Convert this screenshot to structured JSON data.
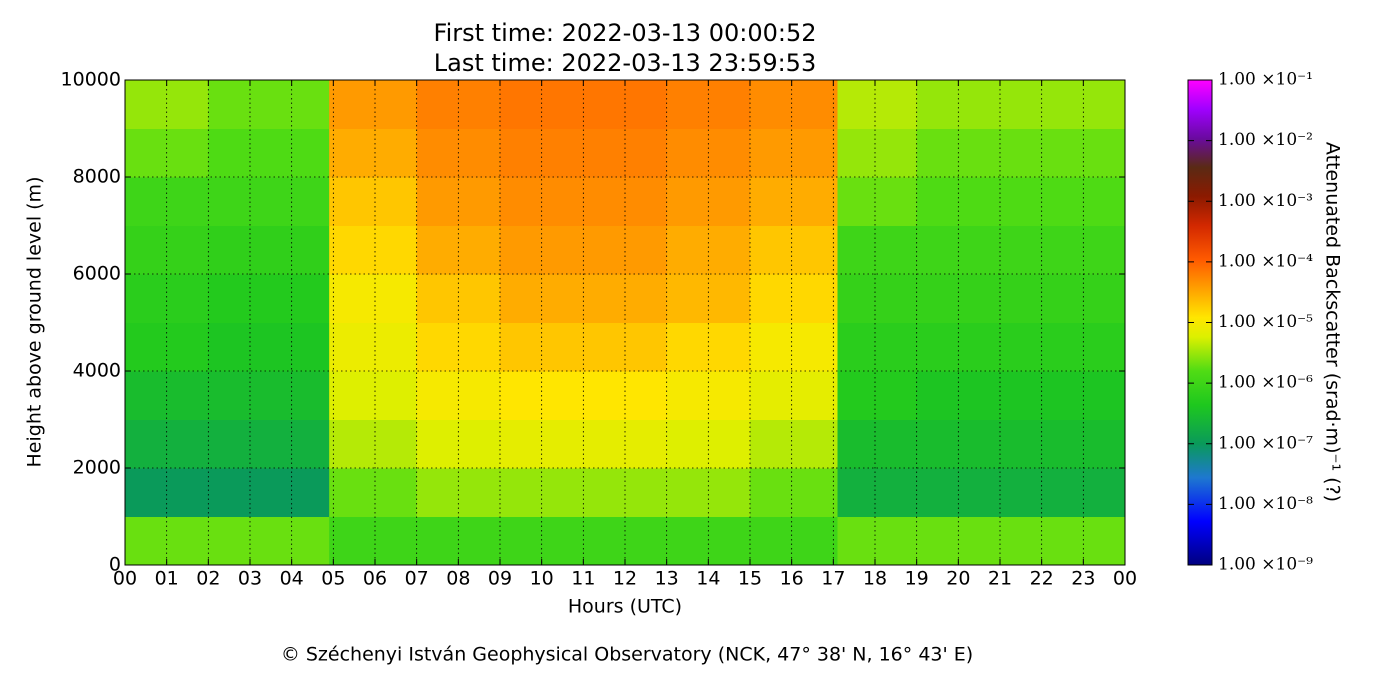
{
  "chart_data": {
    "type": "heatmap",
    "title": [
      "First time: 2022-03-13 00:00:52",
      "Last time: 2022-03-13 23:59:53"
    ],
    "x_label": "Hours (UTC)",
    "y_label": "Height above ground level (m)",
    "colorbar_label": "Attenuated Backscatter (srad·m)⁻¹ (?)",
    "footer": "© Széchenyi István Geophysical Observatory (NCK, 47° 38' N, 16° 43' E)",
    "xlim": [
      0,
      24
    ],
    "xticks": [
      {
        "value": 0,
        "label": "00"
      },
      {
        "value": 1,
        "label": "01"
      },
      {
        "value": 2,
        "label": "02"
      },
      {
        "value": 3,
        "label": "03"
      },
      {
        "value": 4,
        "label": "04"
      },
      {
        "value": 5,
        "label": "05"
      },
      {
        "value": 6,
        "label": "06"
      },
      {
        "value": 7,
        "label": "07"
      },
      {
        "value": 8,
        "label": "08"
      },
      {
        "value": 9,
        "label": "09"
      },
      {
        "value": 10,
        "label": "10"
      },
      {
        "value": 11,
        "label": "11"
      },
      {
        "value": 12,
        "label": "12"
      },
      {
        "value": 13,
        "label": "13"
      },
      {
        "value": 14,
        "label": "14"
      },
      {
        "value": 15,
        "label": "15"
      },
      {
        "value": 16,
        "label": "16"
      },
      {
        "value": 17,
        "label": "17"
      },
      {
        "value": 18,
        "label": "18"
      },
      {
        "value": 19,
        "label": "19"
      },
      {
        "value": 20,
        "label": "20"
      },
      {
        "value": 21,
        "label": "21"
      },
      {
        "value": 22,
        "label": "22"
      },
      {
        "value": 23,
        "label": "23"
      },
      {
        "value": 24,
        "label": "00"
      }
    ],
    "ylim": [
      0,
      10000
    ],
    "yticks": [
      0,
      2000,
      4000,
      6000,
      8000,
      10000
    ],
    "grid": true,
    "x_bins": [
      0,
      2,
      4.9,
      7,
      9,
      11,
      13,
      15,
      17.1,
      19,
      21,
      24
    ],
    "y_bins": [
      0,
      1000,
      2000,
      3000,
      4000,
      5000,
      6000,
      7000,
      8000,
      9000,
      10000
    ],
    "z": [
      [
        2e-06,
        2e-06,
        1e-06,
        1e-06,
        1e-06,
        1e-06,
        1e-06,
        1e-06,
        2e-06,
        2e-06,
        2e-06
      ],
      [
        1e-07,
        1e-07,
        2e-06,
        3e-06,
        3e-06,
        3e-06,
        3e-06,
        2e-06,
        2e-07,
        2e-07,
        2e-07
      ],
      [
        2e-07,
        2e-07,
        4e-06,
        6e-06,
        7e-06,
        7e-06,
        6e-06,
        4e-06,
        3e-07,
        3e-07,
        3e-07
      ],
      [
        3e-07,
        3e-07,
        6e-06,
        1e-05,
        1.2e-05,
        1.2e-05,
        1e-05,
        7e-06,
        5e-07,
        4e-07,
        4e-07
      ],
      [
        5e-07,
        4e-07,
        8e-06,
        1.5e-05,
        2e-05,
        2e-05,
        1.5e-05,
        1e-05,
        6e-07,
        6e-07,
        6e-07
      ],
      [
        6e-07,
        5e-07,
        1e-05,
        2e-05,
        3e-05,
        3e-05,
        2.5e-05,
        1.5e-05,
        8e-07,
        8e-07,
        8e-07
      ],
      [
        8e-07,
        7e-07,
        1.5e-05,
        3e-05,
        4e-05,
        4e-05,
        3e-05,
        2e-05,
        1e-06,
        1e-06,
        1e-06
      ],
      [
        1e-06,
        1e-06,
        2e-05,
        4e-05,
        5e-05,
        5e-05,
        4e-05,
        3e-05,
        2e-06,
        1.5e-06,
        1.5e-06
      ],
      [
        2e-06,
        1.5e-06,
        3e-05,
        5e-05,
        6e-05,
        6e-05,
        5e-05,
        4e-05,
        3e-06,
        2e-06,
        2e-06
      ],
      [
        3e-06,
        2e-06,
        4e-05,
        6e-05,
        7e-05,
        7e-05,
        6e-05,
        5e-05,
        4e-06,
        3e-06,
        3e-06
      ]
    ],
    "zscale": "log",
    "zlim": [
      1e-09,
      0.1
    ],
    "zticks": [
      {
        "value": 1e-09,
        "label": "1.00 ×10⁻⁹"
      },
      {
        "value": 1e-08,
        "label": "1.00 ×10⁻⁸"
      },
      {
        "value": 1e-07,
        "label": "1.00 ×10⁻⁷"
      },
      {
        "value": 1e-06,
        "label": "1.00 ×10⁻⁶"
      },
      {
        "value": 1e-05,
        "label": "1.00 ×10⁻⁵"
      },
      {
        "value": 0.0001,
        "label": "1.00 ×10⁻⁴"
      },
      {
        "value": 0.001,
        "label": "1.00 ×10⁻³"
      },
      {
        "value": 0.01,
        "label": "1.00 ×10⁻²"
      },
      {
        "value": 0.1,
        "label": "1.00 ×10⁻¹"
      }
    ]
  }
}
